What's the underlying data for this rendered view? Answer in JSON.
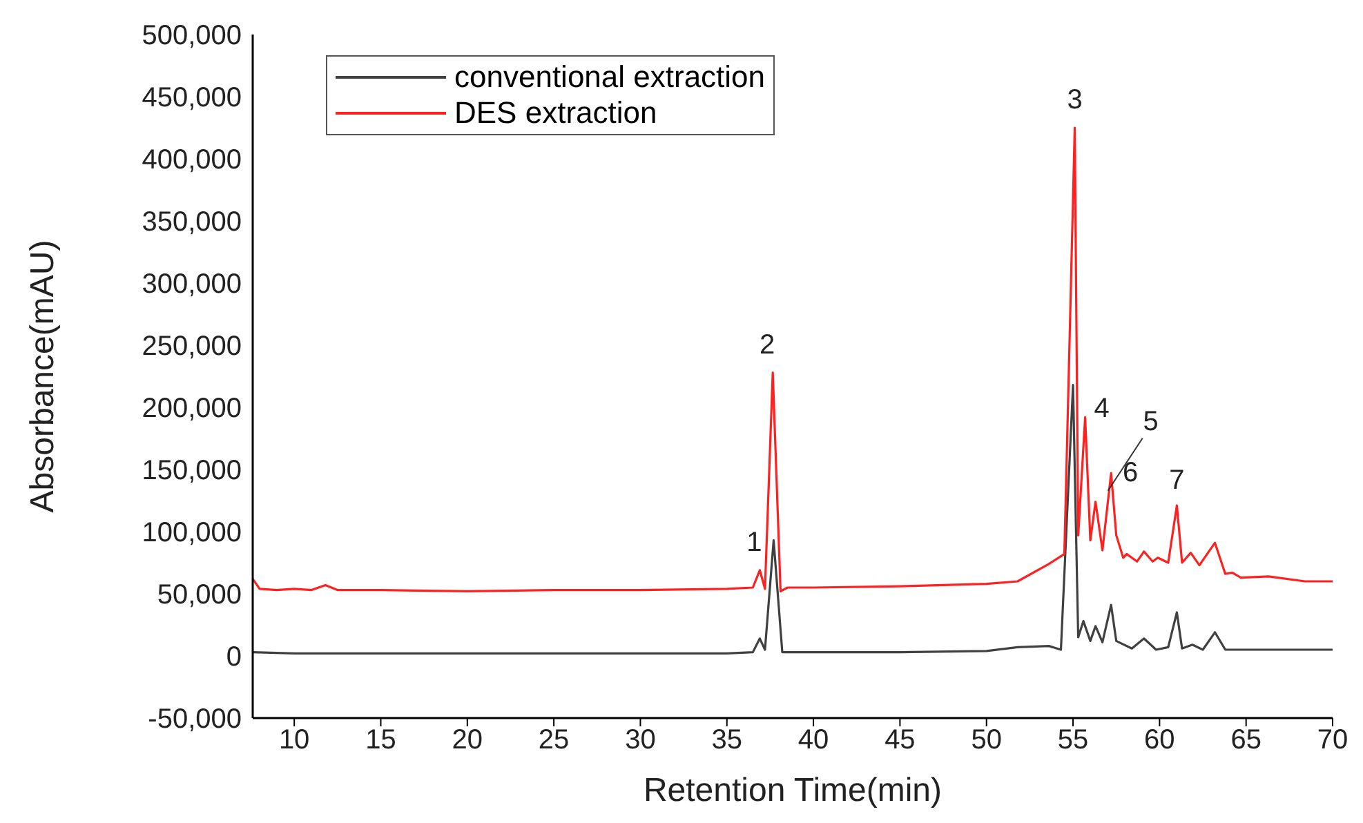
{
  "chart_data": {
    "type": "line",
    "xlabel": "Retention Time(min)",
    "ylabel": "Absorbance(mAU)",
    "xlim": [
      7.6,
      70
    ],
    "xticks": [
      10,
      15,
      20,
      25,
      30,
      35,
      40,
      45,
      50,
      55,
      60,
      65,
      70
    ],
    "ylim": [
      -50000,
      500000
    ],
    "yticks": [
      {
        "value": -50000,
        "label": "-50,000"
      },
      0,
      {
        "value": 50000,
        "label": "50,000"
      },
      {
        "value": 100000,
        "label": "100,000"
      },
      {
        "value": 150000,
        "label": "150,000"
      },
      {
        "value": 200000,
        "label": "200,000"
      },
      {
        "value": 250000,
        "label": "250,000"
      },
      {
        "value": 300000,
        "label": "300,000"
      },
      {
        "value": 350000,
        "label": "350,000"
      },
      {
        "value": 400000,
        "label": "400,000"
      },
      {
        "value": 450000,
        "label": "450,000"
      },
      {
        "value": 500000,
        "label": "500,000"
      }
    ],
    "grid": false,
    "legend": "top left",
    "marker": "none",
    "line_style": "solid",
    "series": [
      {
        "name": "conventional extraction",
        "color": "#404040",
        "x": [
          7.6,
          10,
          12.5,
          15,
          20,
          25,
          30,
          35,
          36.5,
          36.9,
          37.2,
          37.7,
          38.2,
          40,
          45,
          50,
          51.8,
          53.6,
          54.3,
          55.0,
          55.3,
          55.6,
          56.0,
          56.3,
          56.7,
          57.2,
          57.5,
          58.4,
          59.1,
          59.8,
          60.5,
          61.0,
          61.3,
          61.9,
          62.5,
          63.2,
          63.8,
          66,
          70
        ],
        "values": [
          3000,
          2000,
          2000,
          2000,
          2000,
          2000,
          2000,
          2000,
          3000,
          14000,
          5000,
          93000,
          3000,
          3000,
          3000,
          4000,
          7000,
          8000,
          5000,
          218000,
          15000,
          28000,
          12000,
          24000,
          11000,
          41000,
          12000,
          6000,
          14000,
          5000,
          7000,
          35000,
          6000,
          9000,
          5000,
          19000,
          5000,
          5000,
          5000
        ]
      },
      {
        "name": "DES extraction",
        "color": "#ff2020",
        "x": [
          7.6,
          8.0,
          9,
          10,
          11,
          11.8,
          12.5,
          15,
          20,
          25,
          30,
          35,
          36.5,
          36.9,
          37.2,
          37.65,
          38.1,
          38.5,
          40,
          45,
          50,
          51.8,
          53.6,
          54.5,
          55.1,
          55.3,
          55.7,
          56.0,
          56.3,
          56.7,
          57.2,
          57.5,
          57.9,
          58.1,
          58.7,
          59.1,
          59.6,
          59.9,
          60.5,
          61.0,
          61.3,
          61.8,
          62.3,
          63.2,
          63.8,
          64.2,
          64.7,
          66.3,
          68.4,
          70
        ],
        "values": [
          62000,
          54000,
          53000,
          54000,
          53000,
          57000,
          53000,
          53000,
          52000,
          53000,
          53000,
          54000,
          55000,
          69000,
          54000,
          228000,
          52000,
          55000,
          55000,
          56000,
          58000,
          60000,
          74000,
          82000,
          425000,
          97000,
          192000,
          93000,
          124000,
          85000,
          147000,
          97000,
          79000,
          82000,
          76000,
          84000,
          76000,
          79000,
          75000,
          121000,
          75000,
          83000,
          73000,
          91000,
          66000,
          67000,
          63000,
          64000,
          60000,
          60000
        ]
      }
    ],
    "annotations": [
      {
        "text": "1",
        "x": 36.9,
        "y": 69000
      },
      {
        "text": "2",
        "x": 37.65,
        "y": 228000
      },
      {
        "text": "3",
        "x": 55.1,
        "y": 425000
      },
      {
        "text": "4",
        "x": 55.7,
        "y": 192000
      },
      {
        "text": "5",
        "x": 56.3,
        "y": 124000
      },
      {
        "text": "6",
        "x": 57.2,
        "y": 147000
      },
      {
        "text": "7",
        "x": 61.0,
        "y": 121000
      }
    ]
  }
}
